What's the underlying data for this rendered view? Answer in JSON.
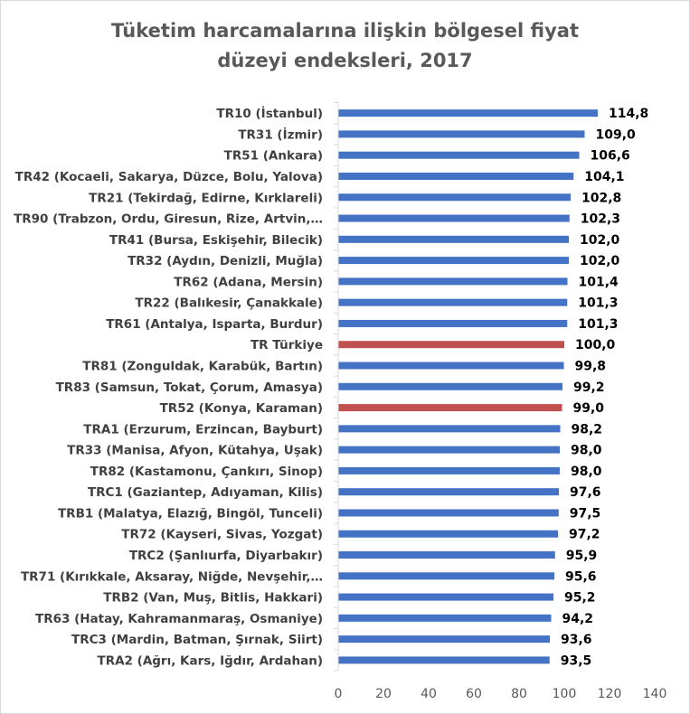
{
  "chart_data": {
    "type": "bar",
    "orientation": "horizontal",
    "title": [
      "Tüketim harcamalarına ilişkin bölgesel fiyat",
      "düzeyi endeksleri, 2017"
    ],
    "categories": [
      "TR10 (İstanbul)",
      "TR31 (İzmir)",
      "TR51 (Ankara)",
      "TR42 (Kocaeli, Sakarya, Düzce, Bolu, Yalova)",
      "TR21 (Tekirdağ, Edirne, Kırklareli)",
      "TR90 (Trabzon, Ordu, Giresun, Rize, Artvin,…",
      "TR41 (Bursa, Eskişehir, Bilecik)",
      "TR32 (Aydın, Denizli, Muğla)",
      "TR62 (Adana, Mersin)",
      "TR22 (Balıkesir, Çanakkale)",
      "TR61 (Antalya, Isparta, Burdur)",
      "TR Türkiye",
      "TR81 (Zonguldak, Karabük, Bartın)",
      "TR83 (Samsun, Tokat, Çorum, Amasya)",
      "TR52 (Konya, Karaman)",
      "TRA1 (Erzurum, Erzincan, Bayburt)",
      "TR33 (Manisa, Afyon, Kütahya, Uşak)",
      "TR82 (Kastamonu, Çankırı, Sinop)",
      "TRC1 (Gaziantep, Adıyaman, Kilis)",
      "TRB1 (Malatya, Elazığ, Bingöl, Tunceli)",
      "TR72 (Kayseri, Sivas, Yozgat)",
      "TRC2 (Şanlıurfa, Diyarbakır)",
      "TR71 (Kırıkkale, Aksaray, Niğde, Nevşehir,…",
      "TRB2 (Van, Muş, Bitlis, Hakkari)",
      "TR63 (Hatay, Kahramanmaraş, Osmaniye)",
      "TRC3 (Mardin, Batman, Şırnak, Siirt)",
      "TRA2 (Ağrı, Kars, Iğdır, Ardahan)"
    ],
    "values": [
      114.8,
      109.0,
      106.6,
      104.1,
      102.8,
      102.3,
      102.0,
      102.0,
      101.4,
      101.3,
      101.3,
      100.0,
      99.8,
      99.2,
      99.0,
      98.2,
      98.0,
      98.0,
      97.6,
      97.5,
      97.2,
      95.9,
      95.6,
      95.2,
      94.2,
      93.6,
      93.5
    ],
    "value_labels": [
      "114,8",
      "109,0",
      "106,6",
      "104,1",
      "102,8",
      "102,3",
      "102,0",
      "102,0",
      "101,4",
      "101,3",
      "101,3",
      "100,0",
      "99,8",
      "99,2",
      "99,0",
      "98,2",
      "98,0",
      "98,0",
      "97,6",
      "97,5",
      "97,2",
      "95,9",
      "95,6",
      "95,2",
      "94,2",
      "93,6",
      "93,5"
    ],
    "highlight_categories": [
      "TR Türkiye",
      "TR52 (Konya, Karaman)"
    ],
    "xlim": [
      0,
      140
    ],
    "xticks": [
      0,
      20,
      40,
      60,
      80,
      100,
      120,
      140
    ],
    "grid": false,
    "legend": "none",
    "colors": {
      "bar": "#4472c4",
      "highlight": "#c0504d",
      "axis": "#d9d9d9",
      "text": "#404040"
    }
  }
}
